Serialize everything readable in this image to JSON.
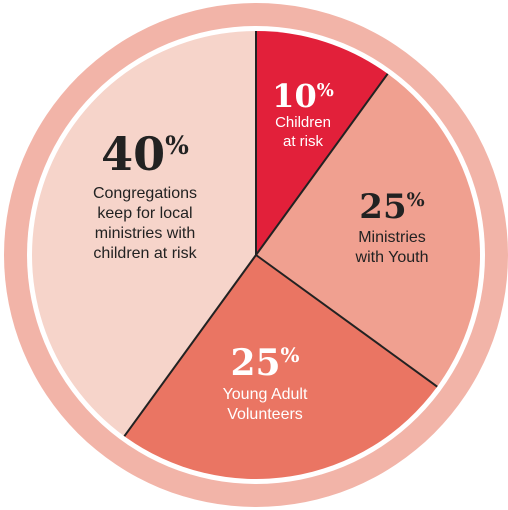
{
  "chart_data": {
    "type": "pie",
    "slices": [
      {
        "percent_label": "10",
        "percent_sign": "%",
        "label_lines": [
          "Children",
          "at risk"
        ],
        "value": 10,
        "color": "#e2203a",
        "text_color": "#ffffff"
      },
      {
        "percent_label": "25",
        "percent_sign": "%",
        "label_lines": [
          "Ministries",
          "with Youth"
        ],
        "value": 25,
        "color": "#f0a090",
        "text_color": "#222222"
      },
      {
        "percent_label": "25",
        "percent_sign": "%",
        "label_lines": [
          "Young Adult",
          "Volunteers"
        ],
        "value": 25,
        "color": "#ea7563",
        "text_color": "#ffffff"
      },
      {
        "percent_label": "40",
        "percent_sign": "%",
        "label_lines": [
          "Congregations",
          "keep for local",
          "ministries with",
          "children at risk"
        ],
        "value": 40,
        "color": "#f6d4ca",
        "text_color": "#222222"
      }
    ],
    "start_angle_deg": 0,
    "direction": "clockwise",
    "outer_ring_color": "#f2b4a8",
    "divider_color": "#222222"
  }
}
